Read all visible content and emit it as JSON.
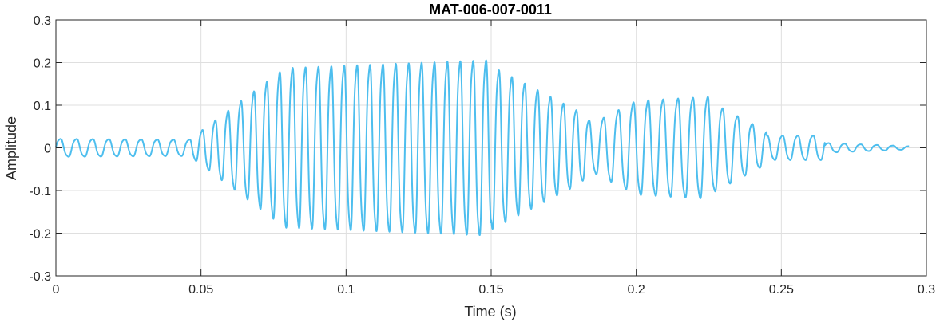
{
  "chart_data": {
    "type": "line",
    "title": "MAT-006-007-0011",
    "xlabel": "Time (s)",
    "ylabel": "Amplitude",
    "xlim": [
      0,
      0.3
    ],
    "ylim": [
      -0.3,
      0.3
    ],
    "xticks": [
      0,
      0.05,
      0.1,
      0.15,
      0.2,
      0.25,
      0.3
    ],
    "xtick_labels": [
      "0",
      "0.05",
      "0.1",
      "0.15",
      "0.2",
      "0.25",
      "0.3"
    ],
    "yticks": [
      -0.3,
      -0.2,
      -0.1,
      0,
      0.1,
      0.2,
      0.3
    ],
    "ytick_labels": [
      "-0.3",
      "-0.2",
      "-0.1",
      "0",
      "0.1",
      "0.2",
      "0.3"
    ],
    "grid": true,
    "line_color": "#4DBEEE",
    "series": [
      {
        "name": "",
        "waveform": {
          "x_start": 0,
          "x_end": 0.294,
          "segments": [
            {
              "from": 0.0,
              "to": 0.046,
              "frequency_hz": 180,
              "amplitude_start": 0.022,
              "amplitude_end": 0.02
            },
            {
              "from": 0.046,
              "to": 0.078,
              "frequency_hz": 225,
              "amplitude_start": 0.02,
              "amplitude_end": 0.19
            },
            {
              "from": 0.078,
              "to": 0.15,
              "frequency_hz": 225,
              "amplitude_start": 0.195,
              "amplitude_end": 0.215
            },
            {
              "from": 0.15,
              "to": 0.18,
              "frequency_hz": 225,
              "amplitude_start": 0.2,
              "amplitude_end": 0.09
            },
            {
              "from": 0.18,
              "to": 0.185,
              "frequency_hz": 225,
              "amplitude_start": 0.09,
              "amplitude_end": 0.06
            },
            {
              "from": 0.185,
              "to": 0.2,
              "frequency_hz": 195,
              "amplitude_start": 0.06,
              "amplitude_end": 0.115
            },
            {
              "from": 0.2,
              "to": 0.225,
              "frequency_hz": 195,
              "amplitude_start": 0.115,
              "amplitude_end": 0.125
            },
            {
              "from": 0.225,
              "to": 0.245,
              "frequency_hz": 195,
              "amplitude_start": 0.115,
              "amplitude_end": 0.04
            },
            {
              "from": 0.245,
              "to": 0.265,
              "frequency_hz": 190,
              "amplitude_start": 0.03,
              "amplitude_end": 0.03
            },
            {
              "from": 0.265,
              "to": 0.294,
              "frequency_hz": 180,
              "amplitude_start": 0.012,
              "amplitude_end": 0.004
            }
          ]
        }
      }
    ]
  }
}
